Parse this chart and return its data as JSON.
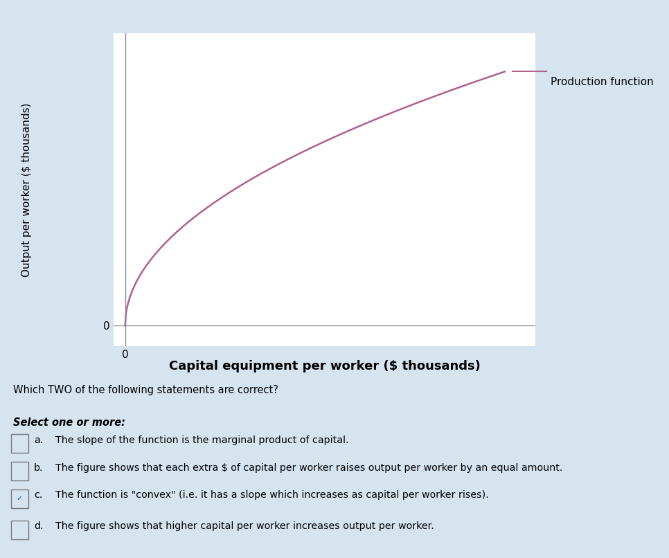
{
  "ylabel": "Output per worker ($ thousands)",
  "xlabel": "Capital equipment per worker ($ thousands)",
  "curve_color": "#b06090",
  "curve_linewidth": 1.8,
  "legend_label": "Production function",
  "legend_fontsize": 11,
  "ylabel_fontsize": 11,
  "xlabel_fontsize": 13,
  "xlabel_fontweight": "bold",
  "background_color": "#ffffff",
  "outer_background": "#d6e4f0",
  "question_text": "Which TWO of the following statements are correct?",
  "select_text": "Select one or more:",
  "options": [
    {
      "label": "a.",
      "text": "The slope of the function is the marginal product of capital.",
      "checked": false
    },
    {
      "label": "b.",
      "text": "The figure shows that each extra $ of capital per worker raises output per worker by an equal amount.",
      "checked": false
    },
    {
      "label": "c.",
      "text": "The function is \"convex\" (i.e. it has a slope which increases as capital per worker rises).",
      "checked": true
    },
    {
      "label": "d.",
      "text": "The figure shows that higher capital per worker increases output per worker.",
      "checked": false
    }
  ]
}
